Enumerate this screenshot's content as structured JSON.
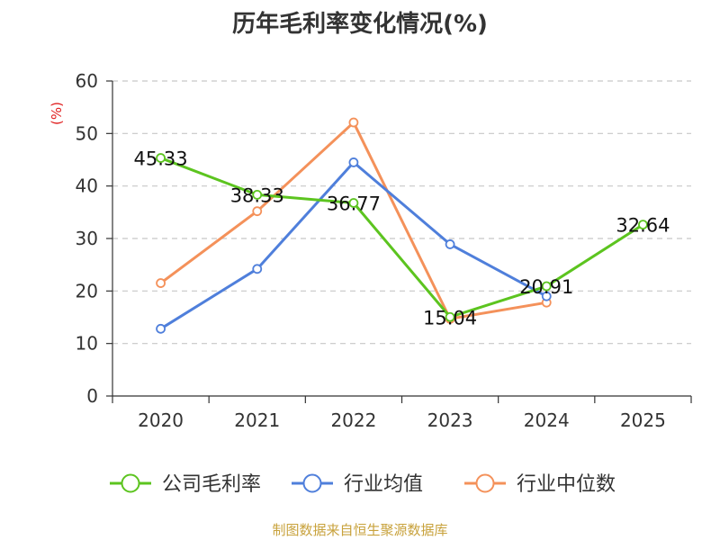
{
  "title": "历年毛利率变化情况(%)",
  "source": "制图数据来自恒生聚源数据库",
  "chart_data": {
    "type": "line",
    "title": "历年毛利率变化情况(%)",
    "ylabel": "(%)",
    "xlabel": "",
    "ylim": [
      0,
      60
    ],
    "yticks": [
      0,
      10,
      20,
      30,
      40,
      50,
      60
    ],
    "categories": [
      "2020",
      "2021",
      "2022",
      "2023",
      "2024",
      "2025"
    ],
    "grid": true,
    "legend_position": "bottom",
    "series": [
      {
        "name": "公司毛利率",
        "color": "#5cc41f",
        "values": [
          45.33,
          38.33,
          36.77,
          15.04,
          20.91,
          32.64
        ],
        "show_labels": true
      },
      {
        "name": "行业均值",
        "color": "#4f7fdb",
        "values": [
          12.8,
          24.2,
          44.5,
          28.9,
          19.0,
          null
        ],
        "show_labels": false
      },
      {
        "name": "行业中位数",
        "color": "#f4915a",
        "values": [
          21.5,
          35.2,
          52.1,
          14.7,
          17.8,
          null
        ],
        "show_labels": false
      }
    ]
  }
}
